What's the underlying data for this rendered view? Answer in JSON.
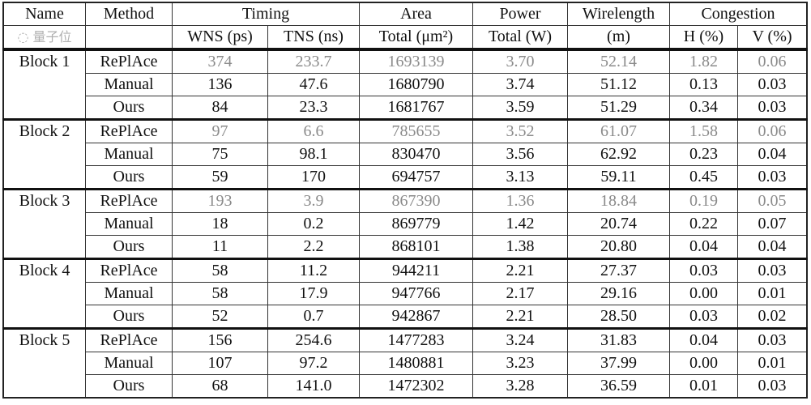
{
  "headers": {
    "top": [
      "Name",
      "Method",
      "Timing",
      "Area",
      "Power",
      "Wirelength",
      "Congestion"
    ],
    "sub": [
      "",
      "",
      "WNS (ps)",
      "TNS (ns)",
      "Total (μm²)",
      "Total (W)",
      "(m)",
      "H (%)",
      "V (%)"
    ]
  },
  "blocks": [
    {
      "name": "Block 1",
      "rows": [
        {
          "method": "RePlAce",
          "values": [
            "374",
            "233.7",
            "1693139",
            "3.70",
            "52.14",
            "1.82",
            "0.06"
          ],
          "baseline": true
        },
        {
          "method": "Manual",
          "values": [
            "136",
            "47.6",
            "1680790",
            "3.74",
            "51.12",
            "0.13",
            "0.03"
          ]
        },
        {
          "method": "Ours",
          "values": [
            "84",
            "23.3",
            "1681767",
            "3.59",
            "51.29",
            "0.34",
            "0.03"
          ]
        }
      ]
    },
    {
      "name": "Block 2",
      "rows": [
        {
          "method": "RePlAce",
          "values": [
            "97",
            "6.6",
            "785655",
            "3.52",
            "61.07",
            "1.58",
            "0.06"
          ],
          "baseline": true
        },
        {
          "method": "Manual",
          "values": [
            "75",
            "98.1",
            "830470",
            "3.56",
            "62.92",
            "0.23",
            "0.04"
          ]
        },
        {
          "method": "Ours",
          "values": [
            "59",
            "170",
            "694757",
            "3.13",
            "59.11",
            "0.45",
            "0.03"
          ]
        }
      ]
    },
    {
      "name": "Block 3",
      "rows": [
        {
          "method": "RePlAce",
          "values": [
            "193",
            "3.9",
            "867390",
            "1.36",
            "18.84",
            "0.19",
            "0.05"
          ],
          "baseline": true
        },
        {
          "method": "Manual",
          "values": [
            "18",
            "0.2",
            "869779",
            "1.42",
            "20.74",
            "0.22",
            "0.07"
          ]
        },
        {
          "method": "Ours",
          "values": [
            "11",
            "2.2",
            "868101",
            "1.38",
            "20.80",
            "0.04",
            "0.04"
          ]
        }
      ]
    },
    {
      "name": "Block 4",
      "rows": [
        {
          "method": "RePlAce",
          "values": [
            "58",
            "11.2",
            "944211",
            "2.21",
            "27.37",
            "0.03",
            "0.03"
          ]
        },
        {
          "method": "Manual",
          "values": [
            "58",
            "17.9",
            "947766",
            "2.17",
            "29.16",
            "0.00",
            "0.01"
          ]
        },
        {
          "method": "Ours",
          "values": [
            "52",
            "0.7",
            "942867",
            "2.21",
            "28.50",
            "0.03",
            "0.02"
          ]
        }
      ]
    },
    {
      "name": "Block 5",
      "rows": [
        {
          "method": "RePlAce",
          "values": [
            "156",
            "254.6",
            "1477283",
            "3.24",
            "31.83",
            "0.04",
            "0.03"
          ]
        },
        {
          "method": "Manual",
          "values": [
            "107",
            "97.2",
            "1480881",
            "3.23",
            "37.99",
            "0.00",
            "0.01"
          ]
        },
        {
          "method": "Ours",
          "values": [
            "68",
            "141.0",
            "1472302",
            "3.28",
            "36.59",
            "0.01",
            "0.03"
          ]
        }
      ]
    }
  ],
  "watermark": "量子位",
  "colors": {
    "baseline_text": "#8a8a8a",
    "text": "#111111"
  }
}
